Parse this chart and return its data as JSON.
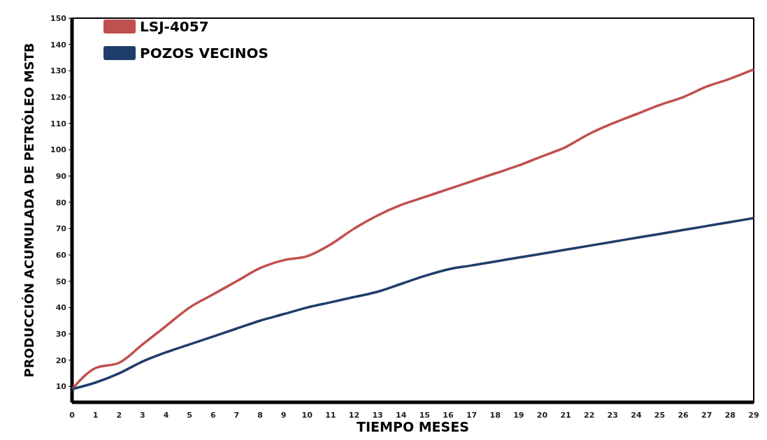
{
  "chart_data": {
    "type": "line",
    "xlabel": "TIEMPO MESES",
    "ylabel": "PRODUCCIÓN  ACUMULADA DE PETRÓLEO MSTB",
    "x": [
      0,
      1,
      2,
      3,
      4,
      5,
      6,
      7,
      8,
      9,
      10,
      11,
      12,
      13,
      14,
      15,
      16,
      17,
      18,
      19,
      20,
      21,
      22,
      23,
      24,
      25,
      26,
      27,
      28,
      29
    ],
    "series": [
      {
        "name": "LSJ-4057",
        "color": "#c0504d",
        "values": [
          9,
          17,
          19,
          26,
          33,
          40,
          45,
          50,
          55,
          58,
          59.5,
          64,
          70,
          75,
          79,
          82,
          85,
          88,
          91,
          94,
          97.5,
          101,
          106,
          110,
          113.5,
          117,
          120,
          124,
          127,
          130.5
        ]
      },
      {
        "name": "POZOS VECINOS",
        "color": "#1f3d6b",
        "values": [
          9,
          11.5,
          15,
          19.5,
          23,
          26,
          29,
          32,
          35,
          37.5,
          40,
          42,
          44,
          46,
          49,
          52,
          54.5,
          56,
          57.5,
          59,
          60.5,
          62,
          63.5,
          65,
          66.5,
          68,
          69.5,
          71,
          72.5,
          74
        ]
      }
    ],
    "xlim": [
      0,
      29
    ],
    "xticks": [
      0,
      1,
      2,
      3,
      4,
      5,
      6,
      7,
      8,
      9,
      10,
      11,
      12,
      13,
      14,
      15,
      16,
      17,
      18,
      19,
      20,
      21,
      22,
      23,
      24,
      25,
      26,
      27,
      28,
      29
    ],
    "ylim": [
      4,
      150
    ],
    "yticks": [
      10,
      20,
      30,
      40,
      50,
      60,
      70,
      80,
      90,
      100,
      110,
      120,
      130,
      140,
      150
    ],
    "legend": "top left",
    "grid": false,
    "marker": "none",
    "line_style": "solid"
  }
}
